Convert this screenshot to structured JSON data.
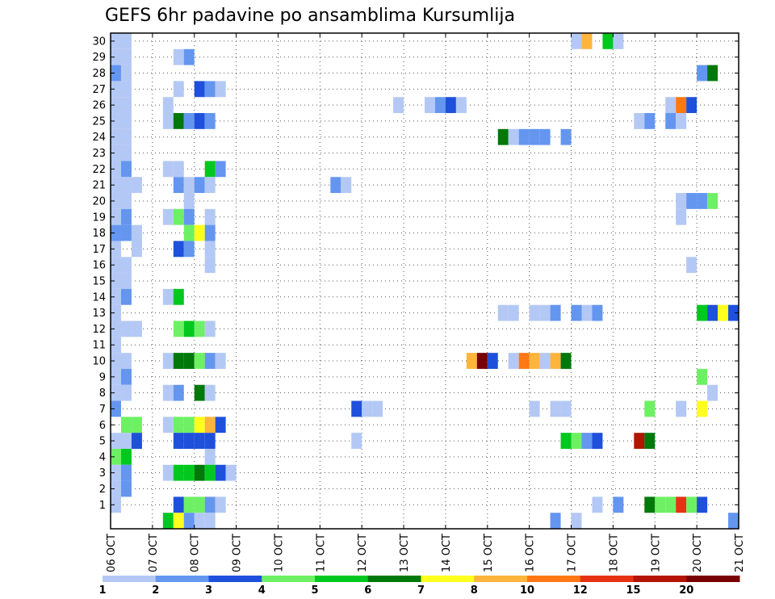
{
  "chart_data": {
    "type": "heatmap",
    "title": "GEFS 6hr padavine po ansamblima Kursumlija",
    "xlabel": "",
    "ylabel": "",
    "x_ticks": [
      "06 OCT",
      "07 OCT",
      "08 OCT",
      "09 OCT",
      "10 OCT",
      "11 OCT",
      "12 OCT",
      "13 OCT",
      "14 OCT",
      "15 OCT",
      "16 OCT",
      "17 OCT",
      "18 OCT",
      "19 OCT",
      "20 OCT",
      "21 OCT"
    ],
    "y_ticks": [
      1,
      2,
      3,
      4,
      5,
      6,
      7,
      8,
      9,
      10,
      11,
      12,
      13,
      14,
      15,
      16,
      17,
      18,
      19,
      20,
      21,
      22,
      23,
      24,
      25,
      26,
      27,
      28,
      29,
      30
    ],
    "xlim_steps": [
      0,
      60
    ],
    "ylim_members": [
      0,
      30
    ],
    "step_hours": 6,
    "legend": {
      "labels": [
        "1",
        "2",
        "3",
        "4",
        "5",
        "6",
        "7",
        "8",
        "10",
        "12",
        "15",
        "20"
      ],
      "colors": [
        "#b4c8f5",
        "#6496f0",
        "#1e50dc",
        "#6ef064",
        "#00c81e",
        "#00780a",
        "#ffff1e",
        "#ffb43c",
        "#ff7814",
        "#e63214",
        "#b41400",
        "#780000"
      ]
    },
    "cells": [
      {
        "m": 30,
        "s": [
          [
            0,
            1,
            0
          ],
          [
            1,
            2,
            0
          ],
          [
            44,
            45,
            0
          ],
          [
            45,
            46,
            7
          ],
          [
            47,
            48,
            4
          ],
          [
            48,
            49,
            0
          ]
        ]
      },
      {
        "m": 29,
        "s": [
          [
            0,
            1,
            0
          ],
          [
            1,
            2,
            0
          ],
          [
            6,
            7,
            0
          ],
          [
            7,
            8,
            1
          ]
        ]
      },
      {
        "m": 28,
        "s": [
          [
            0,
            1,
            1
          ],
          [
            1,
            2,
            0
          ],
          [
            56,
            57,
            1
          ],
          [
            57,
            58,
            5
          ]
        ]
      },
      {
        "m": 27,
        "s": [
          [
            0,
            1,
            0
          ],
          [
            1,
            2,
            0
          ],
          [
            6,
            7,
            0
          ],
          [
            8,
            9,
            2
          ],
          [
            9,
            10,
            1
          ],
          [
            10,
            11,
            0
          ]
        ]
      },
      {
        "m": 26,
        "s": [
          [
            0,
            1,
            0
          ],
          [
            1,
            2,
            0
          ],
          [
            5,
            6,
            0
          ],
          [
            27,
            28,
            0
          ],
          [
            30,
            31,
            0
          ],
          [
            31,
            32,
            1
          ],
          [
            32,
            33,
            2
          ],
          [
            33,
            34,
            0
          ],
          [
            53,
            54,
            0
          ],
          [
            54,
            55,
            8
          ],
          [
            55,
            56,
            2
          ]
        ]
      },
      {
        "m": 25,
        "s": [
          [
            0,
            1,
            0
          ],
          [
            1,
            2,
            0
          ],
          [
            5,
            6,
            0
          ],
          [
            6,
            7,
            5
          ],
          [
            7,
            8,
            1
          ],
          [
            8,
            9,
            2
          ],
          [
            9,
            10,
            1
          ],
          [
            50,
            51,
            0
          ],
          [
            51,
            52,
            1
          ],
          [
            53,
            54,
            1
          ],
          [
            54,
            55,
            0
          ]
        ]
      },
      {
        "m": 24,
        "s": [
          [
            0,
            1,
            0
          ],
          [
            1,
            2,
            0
          ],
          [
            37,
            38,
            5
          ],
          [
            38,
            39,
            0
          ],
          [
            39,
            40,
            1
          ],
          [
            40,
            41,
            1
          ],
          [
            41,
            42,
            1
          ],
          [
            43,
            44,
            1
          ]
        ]
      },
      {
        "m": 23,
        "s": [
          [
            0,
            1,
            0
          ],
          [
            1,
            2,
            0
          ]
        ]
      },
      {
        "m": 22,
        "s": [
          [
            0,
            1,
            0
          ],
          [
            1,
            2,
            1
          ],
          [
            5,
            6,
            0
          ],
          [
            6,
            7,
            0
          ],
          [
            9,
            10,
            4
          ],
          [
            10,
            11,
            1
          ]
        ]
      },
      {
        "m": 21,
        "s": [
          [
            0,
            1,
            0
          ],
          [
            1,
            2,
            0
          ],
          [
            2,
            3,
            0
          ],
          [
            6,
            7,
            1
          ],
          [
            7,
            8,
            0
          ],
          [
            8,
            9,
            1
          ],
          [
            9,
            10,
            0
          ],
          [
            21,
            22,
            1
          ],
          [
            22,
            23,
            0
          ]
        ]
      },
      {
        "m": 20,
        "s": [
          [
            0,
            1,
            0
          ],
          [
            1,
            2,
            0
          ],
          [
            7,
            8,
            0
          ],
          [
            54,
            55,
            0
          ],
          [
            55,
            56,
            1
          ],
          [
            56,
            57,
            1
          ],
          [
            57,
            58,
            3
          ]
        ]
      },
      {
        "m": 19,
        "s": [
          [
            0,
            1,
            0
          ],
          [
            1,
            2,
            1
          ],
          [
            5,
            6,
            0
          ],
          [
            6,
            7,
            3
          ],
          [
            7,
            8,
            1
          ],
          [
            9,
            10,
            0
          ],
          [
            54,
            55,
            0
          ]
        ]
      },
      {
        "m": 18,
        "s": [
          [
            0,
            1,
            1
          ],
          [
            1,
            2,
            1
          ],
          [
            2,
            3,
            0
          ],
          [
            7,
            8,
            3
          ],
          [
            8,
            9,
            6
          ],
          [
            9,
            10,
            1
          ]
        ]
      },
      {
        "m": 17,
        "s": [
          [
            0,
            1,
            0
          ],
          [
            2,
            3,
            0
          ],
          [
            6,
            7,
            2
          ],
          [
            7,
            8,
            1
          ],
          [
            9,
            10,
            0
          ]
        ]
      },
      {
        "m": 16,
        "s": [
          [
            0,
            1,
            0
          ],
          [
            1,
            2,
            0
          ],
          [
            9,
            10,
            0
          ],
          [
            55,
            56,
            0
          ]
        ]
      },
      {
        "m": 15,
        "s": [
          [
            0,
            1,
            0
          ],
          [
            1,
            2,
            0
          ]
        ]
      },
      {
        "m": 14,
        "s": [
          [
            0,
            1,
            0
          ],
          [
            1,
            2,
            1
          ],
          [
            5,
            6,
            0
          ],
          [
            6,
            7,
            4
          ]
        ]
      },
      {
        "m": 13,
        "s": [
          [
            0,
            1,
            0
          ],
          [
            37,
            38,
            0
          ],
          [
            38,
            39,
            0
          ],
          [
            40,
            41,
            0
          ],
          [
            41,
            42,
            0
          ],
          [
            42,
            43,
            1
          ],
          [
            44,
            45,
            1
          ],
          [
            45,
            46,
            0
          ],
          [
            46,
            47,
            1
          ],
          [
            56,
            57,
            4
          ],
          [
            57,
            58,
            2
          ],
          [
            58,
            59,
            6
          ],
          [
            59,
            60,
            2
          ]
        ]
      },
      {
        "m": 12,
        "s": [
          [
            0,
            1,
            0
          ],
          [
            1,
            2,
            0
          ],
          [
            2,
            3,
            0
          ],
          [
            6,
            7,
            3
          ],
          [
            7,
            8,
            4
          ],
          [
            8,
            9,
            3
          ],
          [
            9,
            10,
            0
          ]
        ]
      },
      {
        "m": 11,
        "s": [
          [
            0,
            1,
            0
          ]
        ]
      },
      {
        "m": 10,
        "s": [
          [
            0,
            1,
            0
          ],
          [
            1,
            2,
            0
          ],
          [
            5,
            6,
            0
          ],
          [
            6,
            7,
            5
          ],
          [
            7,
            8,
            5
          ],
          [
            8,
            9,
            3
          ],
          [
            9,
            10,
            1
          ],
          [
            10,
            11,
            0
          ],
          [
            34,
            35,
            7
          ],
          [
            35,
            36,
            11
          ],
          [
            36,
            37,
            2
          ],
          [
            38,
            39,
            0
          ],
          [
            39,
            40,
            8
          ],
          [
            40,
            41,
            7
          ],
          [
            41,
            42,
            0
          ],
          [
            42,
            43,
            7
          ],
          [
            43,
            44,
            5
          ]
        ]
      },
      {
        "m": 9,
        "s": [
          [
            0,
            1,
            0
          ],
          [
            1,
            2,
            1
          ],
          [
            56,
            57,
            3
          ]
        ]
      },
      {
        "m": 8,
        "s": [
          [
            0,
            1,
            0
          ],
          [
            1,
            2,
            0
          ],
          [
            5,
            6,
            0
          ],
          [
            6,
            7,
            1
          ],
          [
            8,
            9,
            5
          ],
          [
            9,
            10,
            0
          ],
          [
            57,
            58,
            0
          ]
        ]
      },
      {
        "m": 7,
        "s": [
          [
            0,
            1,
            1
          ],
          [
            23,
            24,
            2
          ],
          [
            24,
            25,
            0
          ],
          [
            25,
            26,
            0
          ],
          [
            40,
            41,
            0
          ],
          [
            42,
            43,
            0
          ],
          [
            43,
            44,
            0
          ],
          [
            51,
            52,
            3
          ],
          [
            54,
            55,
            0
          ],
          [
            56,
            57,
            6
          ]
        ]
      },
      {
        "m": 6,
        "s": [
          [
            1,
            2,
            3
          ],
          [
            2,
            3,
            3
          ],
          [
            5,
            6,
            0
          ],
          [
            6,
            7,
            3
          ],
          [
            7,
            8,
            3
          ],
          [
            8,
            9,
            6
          ],
          [
            9,
            10,
            7
          ],
          [
            10,
            11,
            2
          ]
        ]
      },
      {
        "m": 5,
        "s": [
          [
            0,
            1,
            0
          ],
          [
            1,
            2,
            0
          ],
          [
            2,
            3,
            2
          ],
          [
            6,
            7,
            2
          ],
          [
            7,
            8,
            2
          ],
          [
            8,
            9,
            2
          ],
          [
            9,
            10,
            2
          ],
          [
            23,
            24,
            0
          ],
          [
            43,
            44,
            4
          ],
          [
            44,
            45,
            3
          ],
          [
            45,
            46,
            1
          ],
          [
            46,
            47,
            2
          ],
          [
            50,
            51,
            10
          ],
          [
            51,
            52,
            5
          ]
        ]
      },
      {
        "m": 4,
        "s": [
          [
            0,
            1,
            3
          ],
          [
            1,
            2,
            4
          ],
          [
            9,
            10,
            0
          ]
        ]
      },
      {
        "m": 3,
        "s": [
          [
            0,
            1,
            0
          ],
          [
            1,
            2,
            1
          ],
          [
            5,
            6,
            0
          ],
          [
            6,
            7,
            4
          ],
          [
            7,
            8,
            4
          ],
          [
            8,
            9,
            5
          ],
          [
            9,
            10,
            4
          ],
          [
            10,
            11,
            2
          ],
          [
            11,
            12,
            0
          ]
        ]
      },
      {
        "m": 2,
        "s": [
          [
            0,
            1,
            0
          ],
          [
            1,
            2,
            1
          ]
        ]
      },
      {
        "m": 1,
        "s": [
          [
            0,
            1,
            0
          ],
          [
            6,
            7,
            2
          ],
          [
            7,
            8,
            3
          ],
          [
            8,
            9,
            3
          ],
          [
            9,
            10,
            1
          ],
          [
            10,
            11,
            0
          ],
          [
            46,
            47,
            0
          ],
          [
            48,
            49,
            1
          ],
          [
            51,
            52,
            5
          ],
          [
            52,
            53,
            3
          ],
          [
            53,
            54,
            3
          ],
          [
            54,
            55,
            9
          ],
          [
            55,
            56,
            3
          ],
          [
            56,
            57,
            2
          ]
        ]
      },
      {
        "m": 0,
        "s": [
          [
            5,
            6,
            4
          ],
          [
            6,
            7,
            6
          ],
          [
            7,
            8,
            1
          ],
          [
            8,
            9,
            0
          ],
          [
            9,
            10,
            0
          ],
          [
            42,
            43,
            1
          ],
          [
            44,
            45,
            0
          ],
          [
            59,
            60,
            1
          ]
        ]
      }
    ]
  }
}
